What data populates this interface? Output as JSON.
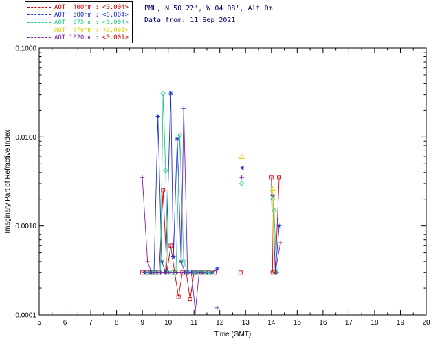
{
  "header": {
    "line1": "PML, N 50 22', W 04 08', Alt 0m",
    "line2": "Data from: 11 Sep 2021",
    "color": "#000066"
  },
  "legend": {
    "items": [
      {
        "label": "AOT  400nm :",
        "value": "<0.004>",
        "color": "#CC0000",
        "value_color": "#CC0000"
      },
      {
        "label": "AOT  500nm :",
        "value": "<0.004>",
        "color": "#2233CC",
        "value_color": "#2233CC"
      },
      {
        "label": "AOT  675nm :",
        "value": "<0.004>",
        "color": "#22CC88",
        "value_color": "#22CC88"
      },
      {
        "label": "AOT  870nm :",
        "value": "<0.001>",
        "color": "#DDCC00",
        "value_color": "#DDCC00"
      },
      {
        "label": "AOT 1020nm :",
        "value": "<0.001>",
        "color": "#7722AA",
        "value_color": "#CC0000"
      }
    ]
  },
  "chart_data": {
    "type": "scatter",
    "title": "",
    "xlabel": "Time (GMT)",
    "ylabel": "Imaginary Part of Refractive Index",
    "xlim": [
      5,
      20
    ],
    "xticks": [
      5,
      6,
      7,
      8,
      9,
      10,
      11,
      12,
      13,
      14,
      15,
      16,
      17,
      18,
      19,
      20
    ],
    "yscale": "log",
    "ylim": [
      0.0001,
      0.1
    ],
    "yticks": [
      {
        "value": 0.0001,
        "label": "0.0001"
      },
      {
        "value": 0.001,
        "label": "0.0010"
      },
      {
        "value": 0.01,
        "label": "0.0100"
      },
      {
        "value": 0.1,
        "label": "0.1000"
      }
    ],
    "grid": false,
    "legend_position": "outside-top-left",
    "series": [
      {
        "name": "AOT 400nm",
        "color": "#CC0000",
        "marker": "square",
        "segments": [
          [
            [
              9.0,
              0.0003
            ],
            [
              9.15,
              0.0003
            ],
            [
              9.3,
              0.0003
            ],
            [
              9.5,
              0.0003
            ],
            [
              9.65,
              0.0003
            ],
            [
              9.8,
              0.0025
            ],
            [
              9.95,
              0.0003
            ],
            [
              10.1,
              0.0006
            ],
            [
              10.25,
              0.0003
            ],
            [
              10.4,
              0.00016
            ],
            [
              10.55,
              0.0003
            ],
            [
              10.7,
              0.0003
            ],
            [
              10.85,
              0.00015
            ],
            [
              11.0,
              0.0003
            ],
            [
              11.15,
              0.0003
            ],
            [
              11.3,
              0.0003
            ],
            [
              11.45,
              0.0003
            ],
            [
              11.6,
              0.0003
            ],
            [
              11.8,
              0.0003
            ]
          ],
          [
            [
              12.8,
              0.0003
            ]
          ],
          [
            [
              14.0,
              0.0035
            ],
            [
              14.05,
              0.0003
            ],
            [
              14.15,
              0.0003
            ],
            [
              14.3,
              0.0035
            ]
          ]
        ]
      },
      {
        "name": "AOT 500nm",
        "color": "#2233CC",
        "marker": "asterisk",
        "segments": [
          [
            [
              9.1,
              0.0003
            ],
            [
              9.3,
              0.0003
            ],
            [
              9.45,
              0.0003
            ],
            [
              9.6,
              0.017
            ],
            [
              9.75,
              0.0004
            ],
            [
              9.9,
              0.0003
            ],
            [
              10.1,
              0.031
            ],
            [
              10.2,
              0.00045
            ],
            [
              10.35,
              0.0095
            ],
            [
              10.5,
              0.0004
            ],
            [
              10.65,
              0.0003
            ],
            [
              10.8,
              0.0003
            ],
            [
              10.95,
              0.0003
            ],
            [
              11.1,
              0.0003
            ],
            [
              11.3,
              0.0003
            ],
            [
              11.5,
              0.0003
            ],
            [
              11.7,
              0.0003
            ],
            [
              11.9,
              0.00033
            ]
          ],
          [
            [
              12.87,
              0.0045
            ]
          ],
          [
            [
              14.05,
              0.0022
            ],
            [
              14.15,
              0.0003
            ],
            [
              14.3,
              0.001
            ]
          ]
        ]
      },
      {
        "name": "AOT 675nm",
        "color": "#22CC88",
        "marker": "diamond",
        "segments": [
          [
            [
              9.2,
              0.0003
            ],
            [
              9.4,
              0.0003
            ],
            [
              9.55,
              0.0003
            ],
            [
              9.7,
              0.0003
            ],
            [
              9.8,
              0.031
            ],
            [
              9.9,
              0.0042
            ],
            [
              10.0,
              0.0003
            ],
            [
              10.15,
              0.0003
            ],
            [
              10.3,
              0.0003
            ],
            [
              10.45,
              0.0105
            ],
            [
              10.6,
              0.0004
            ],
            [
              10.75,
              0.0003
            ],
            [
              10.9,
              0.0003
            ],
            [
              11.05,
              0.0003
            ],
            [
              11.2,
              0.0003
            ],
            [
              11.35,
              0.0003
            ],
            [
              11.5,
              0.0003
            ],
            [
              11.65,
              0.0003
            ]
          ],
          [
            [
              12.85,
              0.003
            ]
          ],
          [
            [
              14.05,
              0.002
            ],
            [
              14.1,
              0.0015
            ],
            [
              14.2,
              0.0003
            ]
          ]
        ]
      },
      {
        "name": "AOT 870nm",
        "color": "#DDCC00",
        "marker": "triangle",
        "segments": [
          [
            [
              12.85,
              0.006
            ]
          ],
          [
            [
              14.05,
              0.0026
            ],
            [
              14.1,
              0.0003
            ]
          ]
        ]
      },
      {
        "name": "AOT 1020nm",
        "color": "#7722AA",
        "marker": "plus",
        "segments": [
          [
            [
              9.0,
              0.0035
            ],
            [
              9.2,
              0.0004
            ],
            [
              9.35,
              0.0003
            ],
            [
              9.55,
              0.0003
            ],
            [
              9.7,
              0.0003
            ],
            [
              9.85,
              0.0003
            ],
            [
              10.0,
              0.0003
            ],
            [
              10.2,
              0.0003
            ],
            [
              10.35,
              0.0003
            ],
            [
              10.5,
              0.0003
            ],
            [
              10.6,
              0.021
            ],
            [
              10.75,
              0.0003
            ],
            [
              10.9,
              0.0003
            ],
            [
              11.05,
              0.00011
            ],
            [
              11.2,
              0.0003
            ],
            [
              11.35,
              0.0003
            ]
          ],
          [
            [
              11.9,
              0.00012
            ]
          ],
          [
            [
              12.85,
              0.0035
            ]
          ],
          [
            [
              14.15,
              0.0003
            ],
            [
              14.35,
              0.00065
            ]
          ]
        ]
      }
    ]
  }
}
